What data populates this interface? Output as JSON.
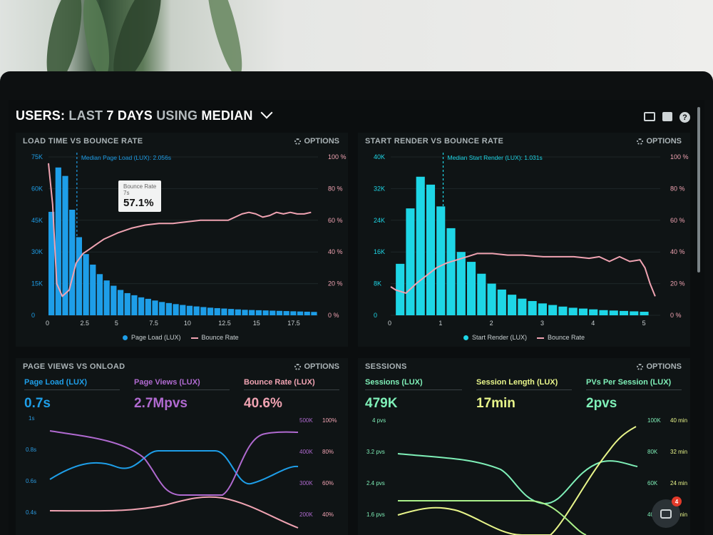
{
  "header": {
    "prefix": "USERS:",
    "range": "LAST",
    "days": "7 DAYS",
    "using": "USING",
    "metric": "MEDIAN"
  },
  "icons": [
    "monitor-icon",
    "image-icon",
    "help-icon"
  ],
  "options_label": "OPTIONS",
  "colors": {
    "blue": "#1e9ee8",
    "cyan": "#1ed6e6",
    "pink": "#f0a3b2",
    "purple": "#b06ad0",
    "green": "#7ff0b8",
    "yellow": "#e8f58a",
    "grid": "#1e2628"
  },
  "panel1": {
    "title": "LOAD TIME VS BOUNCE RATE",
    "median_label": "Median Page Load (LUX): 2.056s",
    "tooltip": {
      "title": "Bounce Rate",
      "sub": "7s",
      "value": "57.1%"
    },
    "legend": [
      "Page Load (LUX)",
      "Bounce Rate"
    ]
  },
  "panel2": {
    "title": "START RENDER VS BOUNCE RATE",
    "median_label": "Median Start Render (LUX): 1.031s",
    "legend": [
      "Start Render (LUX)",
      "Bounce Rate"
    ]
  },
  "panel3": {
    "title": "PAGE VIEWS VS ONLOAD",
    "kpis": [
      {
        "label": "Page Load (LUX)",
        "value": "0.7s"
      },
      {
        "label": "Page Views (LUX)",
        "value": "2.7Mpvs"
      },
      {
        "label": "Bounce Rate (LUX)",
        "value": "40.6%"
      }
    ],
    "y_left": [
      "1s",
      "0.8s",
      "0.6s",
      "0.4s"
    ],
    "y_right1": [
      "500K",
      "400K",
      "300K",
      "200K"
    ],
    "y_right2": [
      "100%",
      "80%",
      "60%",
      "40%"
    ]
  },
  "panel4": {
    "title": "SESSIONS",
    "kpis": [
      {
        "label": "Sessions (LUX)",
        "value": "479K"
      },
      {
        "label": "Session Length (LUX)",
        "value": "17min"
      },
      {
        "label": "PVs Per Session (LUX)",
        "value": "2pvs"
      }
    ],
    "y_left": [
      "4 pvs",
      "3.2 pvs",
      "2.4 pvs",
      "1.6 pvs"
    ],
    "y_right1": [
      "100K",
      "80K",
      "60K",
      "40K"
    ],
    "y_right2": [
      "40 min",
      "32 min",
      "24 min",
      "16 min"
    ]
  },
  "chat_badge": "4",
  "chart_data": [
    {
      "type": "bar",
      "title": "LOAD TIME VS BOUNCE RATE",
      "x_ticks": [
        "0",
        "2.5",
        "5",
        "7.5",
        "10",
        "12.5",
        "15",
        "17.5"
      ],
      "y_left_ticks": [
        "0",
        "15K",
        "30K",
        "45K",
        "60K",
        "75K"
      ],
      "y_right_ticks": [
        "0 %",
        "20 %",
        "40 %",
        "60 %",
        "80 %",
        "100 %"
      ],
      "xlim": [
        0,
        19.5
      ],
      "ylim": [
        0,
        75000
      ],
      "y2lim": [
        0,
        100
      ],
      "median_x": 2.056,
      "series": [
        {
          "name": "Page Load (LUX)",
          "x": [
            0,
            0.5,
            1,
            1.5,
            2,
            2.5,
            3,
            3.5,
            4,
            4.5,
            5,
            5.5,
            6,
            6.5,
            7,
            7.5,
            8,
            8.5,
            9,
            9.5,
            10,
            10.5,
            11,
            11.5,
            12,
            12.5,
            13,
            13.5,
            14,
            14.5,
            15,
            15.5,
            16,
            16.5,
            17,
            17.5,
            18,
            18.5,
            19
          ],
          "values": [
            49000,
            70000,
            66000,
            50000,
            37000,
            29000,
            24000,
            19500,
            16500,
            14000,
            12000,
            10500,
            9500,
            8500,
            7800,
            7000,
            6300,
            5800,
            5300,
            4900,
            4500,
            4200,
            3900,
            3600,
            3400,
            3200,
            3000,
            2800,
            2600,
            2500,
            2400,
            2300,
            2200,
            2100,
            2000,
            1900,
            1800,
            1700,
            1600
          ]
        },
        {
          "name": "Bounce Rate",
          "x": [
            0,
            0.3,
            0.6,
            1,
            1.5,
            2,
            2.5,
            3,
            3.5,
            4,
            5,
            6,
            7,
            8,
            9,
            10,
            11,
            12,
            13,
            13.5,
            14,
            14.5,
            15,
            15.5,
            16,
            16.5,
            17,
            17.5,
            18,
            18.5,
            19
          ],
          "values": [
            96,
            70,
            20,
            12,
            16,
            33,
            39,
            42,
            45,
            48,
            52,
            55,
            57,
            58,
            58,
            59,
            60,
            60,
            60,
            62,
            64,
            65,
            64,
            62,
            63,
            65,
            64,
            65,
            64,
            64,
            65
          ]
        }
      ]
    },
    {
      "type": "bar",
      "title": "START RENDER VS BOUNCE RATE",
      "x_ticks": [
        "0",
        "1",
        "2",
        "3",
        "4",
        "5"
      ],
      "y_left_ticks": [
        "0",
        "8K",
        "16K",
        "24K",
        "32K",
        "40K"
      ],
      "y_right_ticks": [
        "0 %",
        "20 %",
        "40 %",
        "60 %",
        "80 %",
        "100 %"
      ],
      "xlim": [
        0,
        5.3
      ],
      "ylim": [
        0,
        40000
      ],
      "y2lim": [
        0,
        100
      ],
      "median_x": 1.031,
      "series": [
        {
          "name": "Start Render (LUX)",
          "x": [
            0.1,
            0.3,
            0.5,
            0.7,
            0.9,
            1.1,
            1.3,
            1.5,
            1.7,
            1.9,
            2.1,
            2.3,
            2.5,
            2.7,
            2.9,
            3.1,
            3.3,
            3.5,
            3.7,
            3.9,
            4.1,
            4.3,
            4.5,
            4.7,
            4.9
          ],
          "values": [
            13000,
            27000,
            35000,
            33000,
            27500,
            22000,
            16000,
            13500,
            10500,
            8000,
            6500,
            5200,
            4200,
            3600,
            3000,
            2600,
            2200,
            1900,
            1700,
            1500,
            1300,
            1200,
            1100,
            1000,
            900
          ]
        },
        {
          "name": "Bounce Rate",
          "x": [
            0,
            0.1,
            0.3,
            0.5,
            0.7,
            0.9,
            1.1,
            1.3,
            1.5,
            1.7,
            2,
            2.3,
            2.6,
            3,
            3.3,
            3.6,
            3.9,
            4.1,
            4.3,
            4.5,
            4.7,
            4.9,
            5,
            5.1,
            5.2
          ],
          "values": [
            18,
            16,
            14,
            20,
            25,
            30,
            33,
            35,
            37,
            39,
            39,
            38,
            38,
            37,
            37,
            37,
            36,
            37,
            34,
            37,
            34,
            35,
            30,
            20,
            12
          ]
        }
      ]
    }
  ]
}
